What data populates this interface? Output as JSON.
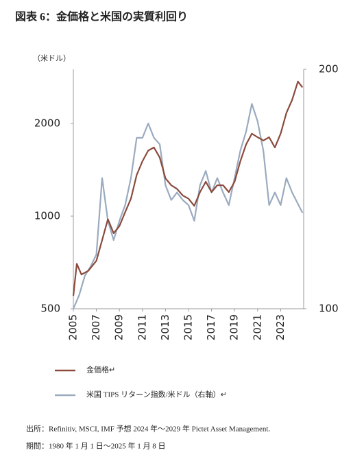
{
  "chart_data": {
    "type": "line",
    "title": "図表 6：金価格と米国の実質利回り",
    "y_axis_label": "（米ドル）",
    "log_scale": true,
    "xlim": [
      2005,
      2025
    ],
    "xticks": [
      2005,
      2007,
      2009,
      2011,
      2013,
      2015,
      2017,
      2019,
      2021,
      2023
    ],
    "ylim": [
      500,
      3000
    ],
    "yticks": [
      500,
      1000,
      2000
    ],
    "y2lim": [
      100,
      200
    ],
    "y2ticks": [
      100,
      200
    ],
    "series": [
      {
        "name": "金価格↵",
        "color": "#8b4a3c",
        "x": [
          2005.0,
          2005.3,
          2005.7,
          2006.3,
          2007.0,
          2007.5,
          2008.0,
          2008.5,
          2009.0,
          2009.5,
          2010.0,
          2010.5,
          2011.0,
          2011.5,
          2012.0,
          2012.5,
          2013.0,
          2013.5,
          2014.0,
          2014.5,
          2015.0,
          2015.5,
          2016.0,
          2016.5,
          2017.0,
          2017.5,
          2018.0,
          2018.5,
          2019.0,
          2019.5,
          2020.0,
          2020.5,
          2021.0,
          2021.5,
          2022.0,
          2022.5,
          2023.0,
          2023.5,
          2024.0,
          2024.5,
          2024.9
        ],
        "values": [
          551,
          700,
          646,
          664,
          716,
          836,
          977,
          880,
          928,
          1030,
          1139,
          1361,
          1508,
          1633,
          1672,
          1550,
          1327,
          1260,
          1226,
          1167,
          1139,
          1080,
          1197,
          1293,
          1197,
          1260,
          1260,
          1197,
          1293,
          1508,
          1710,
          1853,
          1805,
          1761,
          1805,
          1672,
          1853,
          2164,
          2387,
          2738,
          2620
        ]
      },
      {
        "name": "米国 TIPS リターン指数/米ドル（右軸）↵",
        "color": "#9aaabf",
        "axis": "y2",
        "x": [
          2005.0,
          2005.5,
          2006.0,
          2006.5,
          2007.0,
          2007.5,
          2008.0,
          2008.5,
          2009.0,
          2009.5,
          2010.0,
          2010.5,
          2011.0,
          2011.5,
          2012.0,
          2012.5,
          2013.0,
          2013.5,
          2014.0,
          2014.5,
          2015.0,
          2015.5,
          2016.0,
          2016.5,
          2017.0,
          2017.5,
          2018.0,
          2018.5,
          2019.0,
          2019.5,
          2020.0,
          2020.5,
          2021.0,
          2021.5,
          2022.0,
          2022.5,
          2023.0,
          2023.5,
          2024.0,
          2024.9
        ],
        "values": [
          100,
          104,
          110,
          113,
          117,
          146,
          129,
          122,
          129,
          135,
          146,
          164,
          164,
          171,
          164,
          161,
          143,
          137,
          140,
          137,
          135,
          129,
          143,
          149,
          140,
          146,
          140,
          135,
          146,
          158,
          167,
          181,
          172,
          158,
          135,
          140,
          135,
          146,
          140,
          132
        ]
      }
    ],
    "notes": [
      "出所：Refinitiv, MSCI, IMF  予想 2024 年～2029 年  Pictet Asset Management.",
      "期間：1980 年 1 月 1 日～2025 年 1 月 8 日"
    ]
  }
}
